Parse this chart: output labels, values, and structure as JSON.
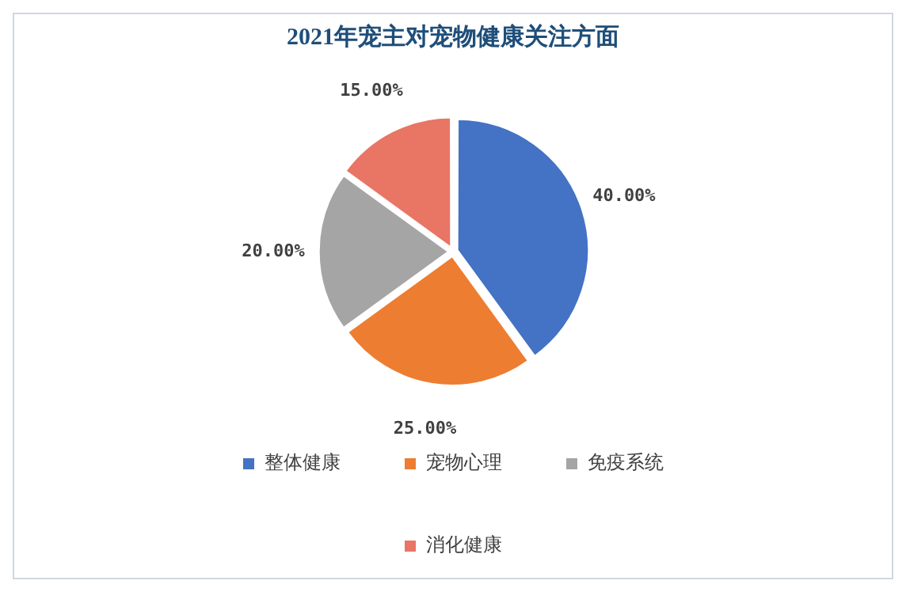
{
  "chart_data": {
    "type": "pie",
    "title": "2021年宠主对宠物健康关注方面",
    "categories": [
      "整体健康",
      "宠物心理",
      "免疫系统",
      "消化健康"
    ],
    "values": [
      40,
      25,
      20,
      15
    ],
    "colors": [
      "#4472c4",
      "#ed7d31",
      "#a5a5a5",
      "#e97565"
    ],
    "value_labels": [
      "40.00%",
      "25.00%",
      "20.00%",
      "15.00%"
    ],
    "legend": "bottom"
  }
}
